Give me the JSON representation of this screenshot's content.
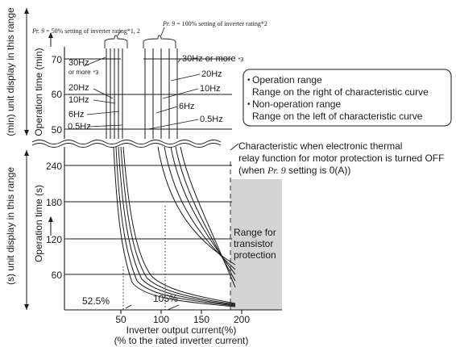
{
  "colors": {
    "ink": "#1a1a1a",
    "protection_band": "#d4d4d4",
    "background": "#ffffff"
  },
  "axes": {
    "x_label_1": "Inverter output current(%)",
    "x_label_2": "(% to the rated inverter current)",
    "x_ticks": [
      "50",
      "100",
      "150",
      "200"
    ],
    "y_upper_label": "Operation time (min)",
    "y_upper_ticks": [
      "70",
      "60",
      "50"
    ],
    "y_lower_label": "Operation time (s)",
    "y_lower_ticks": [
      "240",
      "180",
      "120",
      "60"
    ],
    "y_upper_side": "(min) unit display in this range",
    "y_lower_side": "(s) unit display in this range"
  },
  "header_50": {
    "param": "Pr. 9",
    "text": " = 50% setting of inverter rating*1, 2"
  },
  "header_100": {
    "param": "Pr. 9",
    "text": " = 100% setting of inverter rating*2"
  },
  "left_labels": {
    "hz30": "30Hz",
    "or_more": "or more",
    "note3": "*3",
    "hz20": "20Hz",
    "hz10": "10Hz",
    "hz6": "6Hz",
    "hz05": "0.5Hz"
  },
  "right_labels": {
    "hz30": "30Hz or more",
    "note3": "*3",
    "hz20": "20Hz",
    "hz10": "10Hz",
    "hz6": "6Hz",
    "hz05": "0.5Hz"
  },
  "legend_box": {
    "bullet": "•",
    "line1": "Operation range",
    "line2": "Range on the right of characteristic curve",
    "line3": "Non-operation range",
    "line4": "Range on the left of characteristic curve"
  },
  "thermal_note": {
    "line1": "Characteristic when electronic thermal",
    "line2": "relay function for motor protection is turned OFF",
    "line3_prefix": "(when ",
    "line3_param": "Pr. 9",
    "line3_suffix": " setting is 0(A))"
  },
  "protection_range": {
    "line1": "Range for",
    "line2": "transistor",
    "line3": "protection"
  },
  "bottom_labels": {
    "pct_525": "52.5%",
    "pct_105": "105%"
  }
}
